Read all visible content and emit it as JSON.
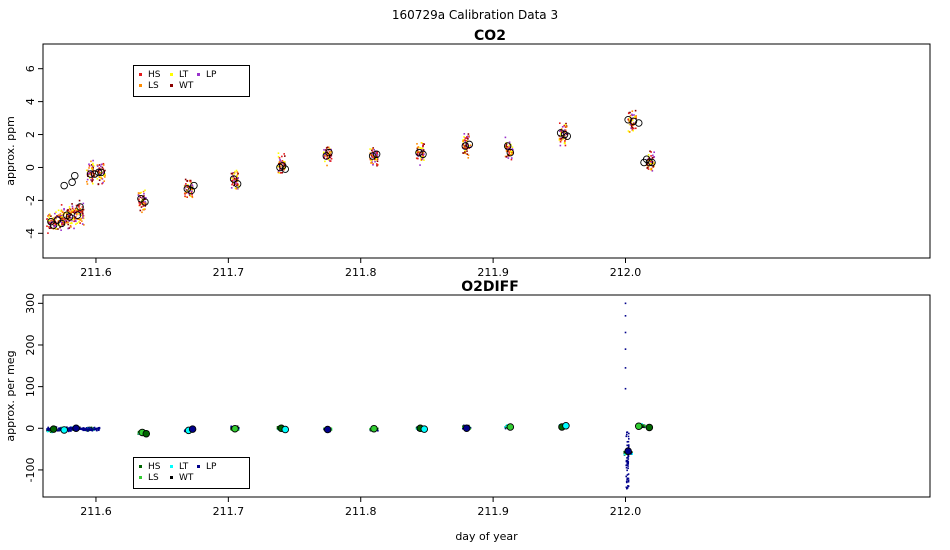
{
  "figure": {
    "suptitle": "160729a   Calibration Data 3",
    "xlabel": "day of year"
  },
  "colors": {
    "HS": "#e41a1c",
    "LS": "#ff8c00",
    "LT": "#ffff00",
    "WT": "#8b0000",
    "LP": "#9932cc",
    "o2_HS": "#006400",
    "o2_LS": "#32cd32",
    "o2_LT": "#00ffff",
    "o2_WT": "#000000",
    "o2_LP": "#00008b"
  },
  "chart_data": [
    {
      "type": "scatter",
      "title": "CO2",
      "ylabel": "approx. ppm",
      "xlabel": "",
      "xlim": [
        211.56,
        212.23
      ],
      "ylim": [
        -5.5,
        7.5
      ],
      "xticks": [
        211.6,
        211.7,
        211.8,
        211.9,
        212.0
      ],
      "xtick_labels": [
        "211.6",
        "211.7",
        "211.8",
        "211.9",
        "212.0"
      ],
      "yticks": [
        -4,
        -2,
        0,
        2,
        4,
        6
      ],
      "ytick_labels": [
        "-4",
        "-2",
        "0",
        "2",
        "4",
        "6"
      ],
      "legend": {
        "position": "top-left",
        "entries": [
          "HS",
          "LS",
          "LT",
          "WT",
          "LP"
        ]
      },
      "clusters": [
        {
          "x": 211.566,
          "y": -3.3
        },
        {
          "x": 211.572,
          "y": -3.2
        },
        {
          "x": 211.577,
          "y": -3.1
        },
        {
          "x": 211.583,
          "y": -2.9
        },
        {
          "x": 211.588,
          "y": -2.8
        },
        {
          "x": 211.596,
          "y": -0.4
        },
        {
          "x": 211.604,
          "y": -0.3
        },
        {
          "x": 211.635,
          "y": -2.0
        },
        {
          "x": 211.67,
          "y": -1.3
        },
        {
          "x": 211.705,
          "y": -0.8
        },
        {
          "x": 211.74,
          "y": 0.1
        },
        {
          "x": 211.775,
          "y": 0.8
        },
        {
          "x": 211.81,
          "y": 0.7
        },
        {
          "x": 211.845,
          "y": 0.9
        },
        {
          "x": 211.88,
          "y": 1.3
        },
        {
          "x": 211.912,
          "y": 1.1
        },
        {
          "x": 211.953,
          "y": 2.0
        },
        {
          "x": 212.005,
          "y": 2.8
        },
        {
          "x": 212.019,
          "y": 0.4
        }
      ],
      "means": [
        {
          "x": 211.566,
          "y": -3.3
        },
        {
          "x": 211.568,
          "y": -3.5
        },
        {
          "x": 211.571,
          "y": -3.2
        },
        {
          "x": 211.574,
          "y": -3.4
        },
        {
          "x": 211.576,
          "y": -1.1
        },
        {
          "x": 211.578,
          "y": -2.9
        },
        {
          "x": 211.58,
          "y": -3.0
        },
        {
          "x": 211.582,
          "y": -0.9
        },
        {
          "x": 211.584,
          "y": -0.5
        },
        {
          "x": 211.586,
          "y": -2.9
        },
        {
          "x": 211.588,
          "y": -2.4
        },
        {
          "x": 211.596,
          "y": -0.4
        },
        {
          "x": 211.599,
          "y": -0.4
        },
        {
          "x": 211.602,
          "y": -0.3
        },
        {
          "x": 211.604,
          "y": -0.3
        },
        {
          "x": 211.634,
          "y": -1.9
        },
        {
          "x": 211.637,
          "y": -2.1
        },
        {
          "x": 211.669,
          "y": -1.3
        },
        {
          "x": 211.672,
          "y": -1.4
        },
        {
          "x": 211.674,
          "y": -1.1
        },
        {
          "x": 211.704,
          "y": -0.7
        },
        {
          "x": 211.707,
          "y": -1.0
        },
        {
          "x": 211.739,
          "y": 0.0
        },
        {
          "x": 211.741,
          "y": 0.1
        },
        {
          "x": 211.743,
          "y": -0.1
        },
        {
          "x": 211.774,
          "y": 0.7
        },
        {
          "x": 211.776,
          "y": 0.9
        },
        {
          "x": 211.809,
          "y": 0.7
        },
        {
          "x": 211.812,
          "y": 0.8
        },
        {
          "x": 211.844,
          "y": 0.9
        },
        {
          "x": 211.847,
          "y": 0.8
        },
        {
          "x": 211.879,
          "y": 1.3
        },
        {
          "x": 211.882,
          "y": 1.4
        },
        {
          "x": 211.911,
          "y": 1.3
        },
        {
          "x": 211.913,
          "y": 0.9
        },
        {
          "x": 211.951,
          "y": 2.1
        },
        {
          "x": 211.954,
          "y": 2.0
        },
        {
          "x": 211.956,
          "y": 1.9
        },
        {
          "x": 212.002,
          "y": 2.9
        },
        {
          "x": 212.006,
          "y": 2.8
        },
        {
          "x": 212.01,
          "y": 2.7
        },
        {
          "x": 212.014,
          "y": 0.3
        },
        {
          "x": 212.016,
          "y": 0.5
        },
        {
          "x": 212.018,
          "y": 0.3
        },
        {
          "x": 212.02,
          "y": 0.3
        }
      ]
    },
    {
      "type": "scatter",
      "title": "O2DIFF",
      "ylabel": "approx. per meg",
      "xlabel": "day of year",
      "xlim": [
        211.56,
        212.23
      ],
      "ylim": [
        -165,
        320
      ],
      "xticks": [
        211.6,
        211.7,
        211.8,
        211.9,
        212.0
      ],
      "xtick_labels": [
        "211.6",
        "211.7",
        "211.8",
        "211.9",
        "212.0"
      ],
      "yticks": [
        -100,
        0,
        100,
        200,
        300
      ],
      "ytick_labels": [
        "-100",
        "0",
        "100",
        "200",
        "300"
      ],
      "legend": {
        "position": "bottom-left",
        "entries": [
          "HS",
          "LS",
          "LT",
          "WT",
          "LP"
        ]
      },
      "clusters": [
        {
          "x": 211.566,
          "y": -5
        },
        {
          "x": 211.575,
          "y": -3
        },
        {
          "x": 211.585,
          "y": 0
        },
        {
          "x": 211.596,
          "y": -2
        },
        {
          "x": 211.635,
          "y": -10
        },
        {
          "x": 211.67,
          "y": -5
        },
        {
          "x": 211.705,
          "y": 0
        },
        {
          "x": 211.74,
          "y": 0
        },
        {
          "x": 211.775,
          "y": -3
        },
        {
          "x": 211.81,
          "y": -2
        },
        {
          "x": 211.845,
          "y": 0
        },
        {
          "x": 211.88,
          "y": 2
        },
        {
          "x": 211.912,
          "y": 3
        },
        {
          "x": 211.953,
          "y": 5
        },
        {
          "x": 212.002,
          "y": -60
        },
        {
          "x": 212.012,
          "y": 5
        }
      ],
      "spike": [
        {
          "x": 212.0,
          "y": 300
        },
        {
          "x": 212.0,
          "y": 270
        },
        {
          "x": 212.0,
          "y": 230
        },
        {
          "x": 212.0,
          "y": 190
        },
        {
          "x": 212.0,
          "y": 145
        },
        {
          "x": 212.0,
          "y": 95
        },
        {
          "x": 212.001,
          "y": -130
        },
        {
          "x": 212.001,
          "y": -145
        }
      ],
      "means": [
        {
          "x": 211.568,
          "y": -2
        },
        {
          "x": 211.576,
          "y": -4
        },
        {
          "x": 211.585,
          "y": 0
        },
        {
          "x": 211.635,
          "y": -10
        },
        {
          "x": 211.638,
          "y": -13
        },
        {
          "x": 211.67,
          "y": -5
        },
        {
          "x": 211.673,
          "y": -2
        },
        {
          "x": 211.705,
          "y": -1
        },
        {
          "x": 211.74,
          "y": 0
        },
        {
          "x": 211.743,
          "y": -3
        },
        {
          "x": 211.775,
          "y": -3
        },
        {
          "x": 211.81,
          "y": -1
        },
        {
          "x": 211.845,
          "y": 0
        },
        {
          "x": 211.848,
          "y": -2
        },
        {
          "x": 211.88,
          "y": 0
        },
        {
          "x": 211.913,
          "y": 3
        },
        {
          "x": 211.952,
          "y": 3
        },
        {
          "x": 211.955,
          "y": 6
        },
        {
          "x": 212.002,
          "y": -55
        },
        {
          "x": 212.01,
          "y": 5
        },
        {
          "x": 212.018,
          "y": 2
        }
      ]
    }
  ]
}
